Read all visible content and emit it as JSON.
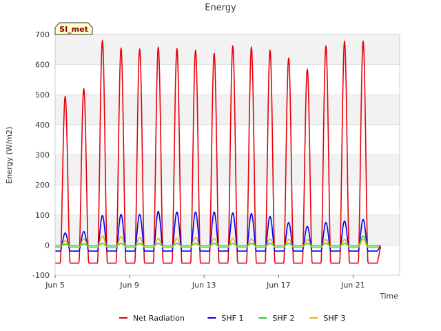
{
  "chart_data": {
    "type": "line",
    "title": "Energy",
    "xlabel": "Time",
    "ylabel": "Energy (W/m2)",
    "site_label": "SI_met",
    "ylim": [
      -100,
      700
    ],
    "yticks": [
      -100,
      0,
      100,
      200,
      300,
      400,
      500,
      600,
      700
    ],
    "xlim": [
      "2024-06-05",
      "2024-06-23"
    ],
    "xticks": [
      {
        "date": "2024-06-05",
        "label": "Jun 5"
      },
      {
        "date": "2024-06-09",
        "label": "Jun 9"
      },
      {
        "date": "2024-06-13",
        "label": "Jun 13"
      },
      {
        "date": "2024-06-17",
        "label": "Jun 17"
      },
      {
        "date": "2024-06-21",
        "label": "Jun 21"
      }
    ],
    "grid": "horizontal bands",
    "legend_position": "bottom",
    "colors": {
      "Net Radiation": "#e8000b",
      "SHF 1": "#0000ee",
      "SHF 2": "#22dd22",
      "SHF 3": "#ffa500"
    },
    "days": [
      "Jun 5",
      "Jun 6",
      "Jun 7",
      "Jun 8",
      "Jun 9",
      "Jun 10",
      "Jun 11",
      "Jun 12",
      "Jun 13",
      "Jun 14",
      "Jun 15",
      "Jun 16",
      "Jun 17",
      "Jun 18",
      "Jun 19",
      "Jun 20",
      "Jun 21",
      "Jun 22"
    ],
    "series": [
      {
        "name": "Net Radiation",
        "daily_max": [
          495,
          520,
          680,
          655,
          652,
          658,
          653,
          648,
          638,
          662,
          658,
          648,
          622,
          585,
          662,
          678,
          678,
          0
        ],
        "night_min": -60
      },
      {
        "name": "SHF 1",
        "daily_max": [
          40,
          45,
          98,
          102,
          102,
          112,
          110,
          110,
          110,
          107,
          105,
          95,
          75,
          62,
          75,
          80,
          85,
          0
        ],
        "night_min": -20
      },
      {
        "name": "SHF 2",
        "daily_max": [
          3,
          4,
          5,
          5,
          5,
          5,
          5,
          5,
          5,
          5,
          5,
          5,
          5,
          5,
          5,
          5,
          30,
          0
        ],
        "night_min": -3
      },
      {
        "name": "SHF 3",
        "daily_max": [
          15,
          20,
          30,
          28,
          25,
          22,
          22,
          25,
          22,
          22,
          20,
          20,
          18,
          18,
          18,
          18,
          20,
          0
        ],
        "night_min": -8
      }
    ]
  }
}
